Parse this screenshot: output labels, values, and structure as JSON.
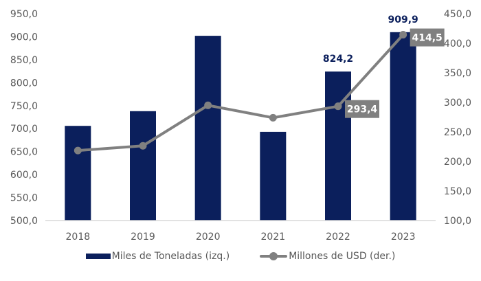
{
  "chart_data": {
    "type": "bar+line",
    "title": "",
    "categories": [
      "2018",
      "2019",
      "2020",
      "2021",
      "2022",
      "2023"
    ],
    "series": [
      {
        "name": "Miles de Toneladas (izq.)",
        "type": "bar",
        "axis": "left",
        "color": "#0b1f5c",
        "values": [
          706.0,
          738.0,
          902.0,
          693.0,
          824.2,
          909.9
        ],
        "labels": [
          null,
          null,
          null,
          null,
          "824,2",
          "909,9"
        ]
      },
      {
        "name": "Millones de USD (der.)",
        "type": "line",
        "axis": "right",
        "color": "#808080",
        "values": [
          218.5,
          226.5,
          295.0,
          274.0,
          293.4,
          414.5
        ],
        "labels": [
          null,
          null,
          null,
          null,
          "293,4",
          "414,5"
        ]
      }
    ],
    "left_axis": {
      "range": [
        500,
        950
      ],
      "ticks": [
        500,
        550,
        600,
        650,
        700,
        750,
        800,
        850,
        900,
        950
      ],
      "tick_labels": [
        "500,0",
        "550,0",
        "600,0",
        "650,0",
        "700,0",
        "750,0",
        "800,0",
        "850,0",
        "900,0",
        "950,0"
      ]
    },
    "right_axis": {
      "range": [
        100,
        450
      ],
      "ticks": [
        100,
        150,
        200,
        250,
        300,
        350,
        400,
        450
      ],
      "tick_labels": [
        "100,0",
        "150,0",
        "200,0",
        "250,0",
        "300,0",
        "350,0",
        "400,0",
        "450,0"
      ]
    },
    "xlabel": "",
    "ylabel_left": "",
    "ylabel_right": "",
    "grid": false,
    "legend_position": "bottom"
  },
  "legend": {
    "bar_label": "Miles de Toneladas (izq.)",
    "line_label": "Millones de USD (der.)"
  }
}
